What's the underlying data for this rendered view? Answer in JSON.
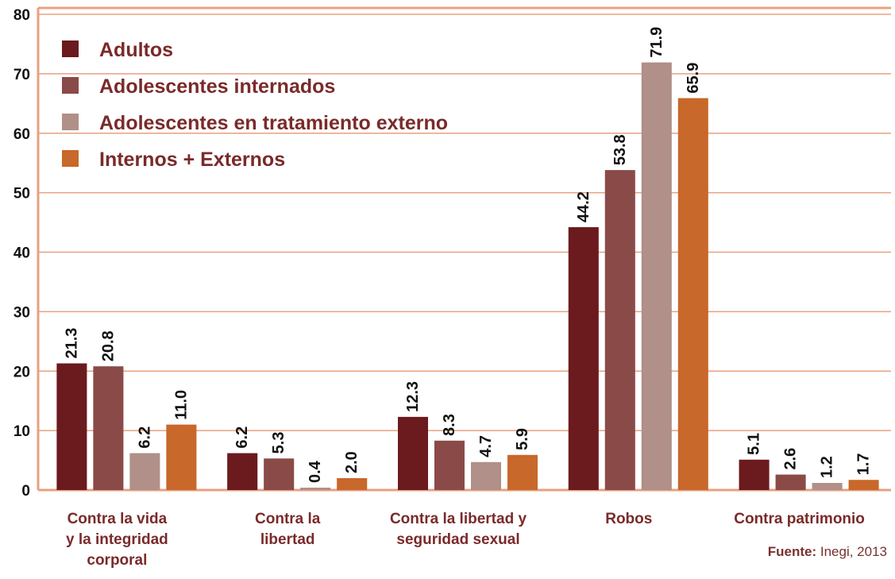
{
  "chart_data": {
    "type": "bar",
    "categories": [
      [
        "Contra la vida",
        "y la integridad",
        "corporal"
      ],
      [
        "Contra la",
        "libertad"
      ],
      [
        "Contra la libertad y",
        "seguridad sexual"
      ],
      [
        "Robos"
      ],
      [
        "Contra patrimonio"
      ]
    ],
    "series": [
      {
        "name": "Adultos",
        "color": "#6b1a1e",
        "values": [
          21.3,
          6.2,
          12.3,
          44.2,
          5.1
        ],
        "value_labels": [
          "21.3",
          "6.2",
          "12.3",
          "44.2",
          "5.1"
        ]
      },
      {
        "name": "Adolescentes internados",
        "color": "#8a4a48",
        "values": [
          20.8,
          5.3,
          8.3,
          53.8,
          2.6
        ],
        "value_labels": [
          "20.8",
          "5.3",
          "8.3",
          "53.8",
          "2.6"
        ]
      },
      {
        "name": "Adolescentes en tratamiento externo",
        "color": "#b09088",
        "values": [
          6.2,
          0.4,
          4.7,
          71.9,
          1.2
        ],
        "value_labels": [
          "6.2",
          "0.4",
          "4.7",
          "71.9",
          "1.2"
        ]
      },
      {
        "name": "Internos + Externos",
        "color": "#c8682a",
        "values": [
          11.0,
          2.0,
          5.9,
          65.9,
          1.7
        ],
        "value_labels": [
          "11.0",
          "2.0",
          "5.9",
          "65.9",
          "1.7"
        ]
      }
    ],
    "ylim": [
      0,
      80
    ],
    "yticks": [
      0,
      10,
      20,
      30,
      40,
      50,
      60,
      70,
      80
    ],
    "grid": true,
    "legend": "upper left",
    "source": {
      "label": "Fuente:",
      "text": "Inegi, 2013"
    }
  }
}
